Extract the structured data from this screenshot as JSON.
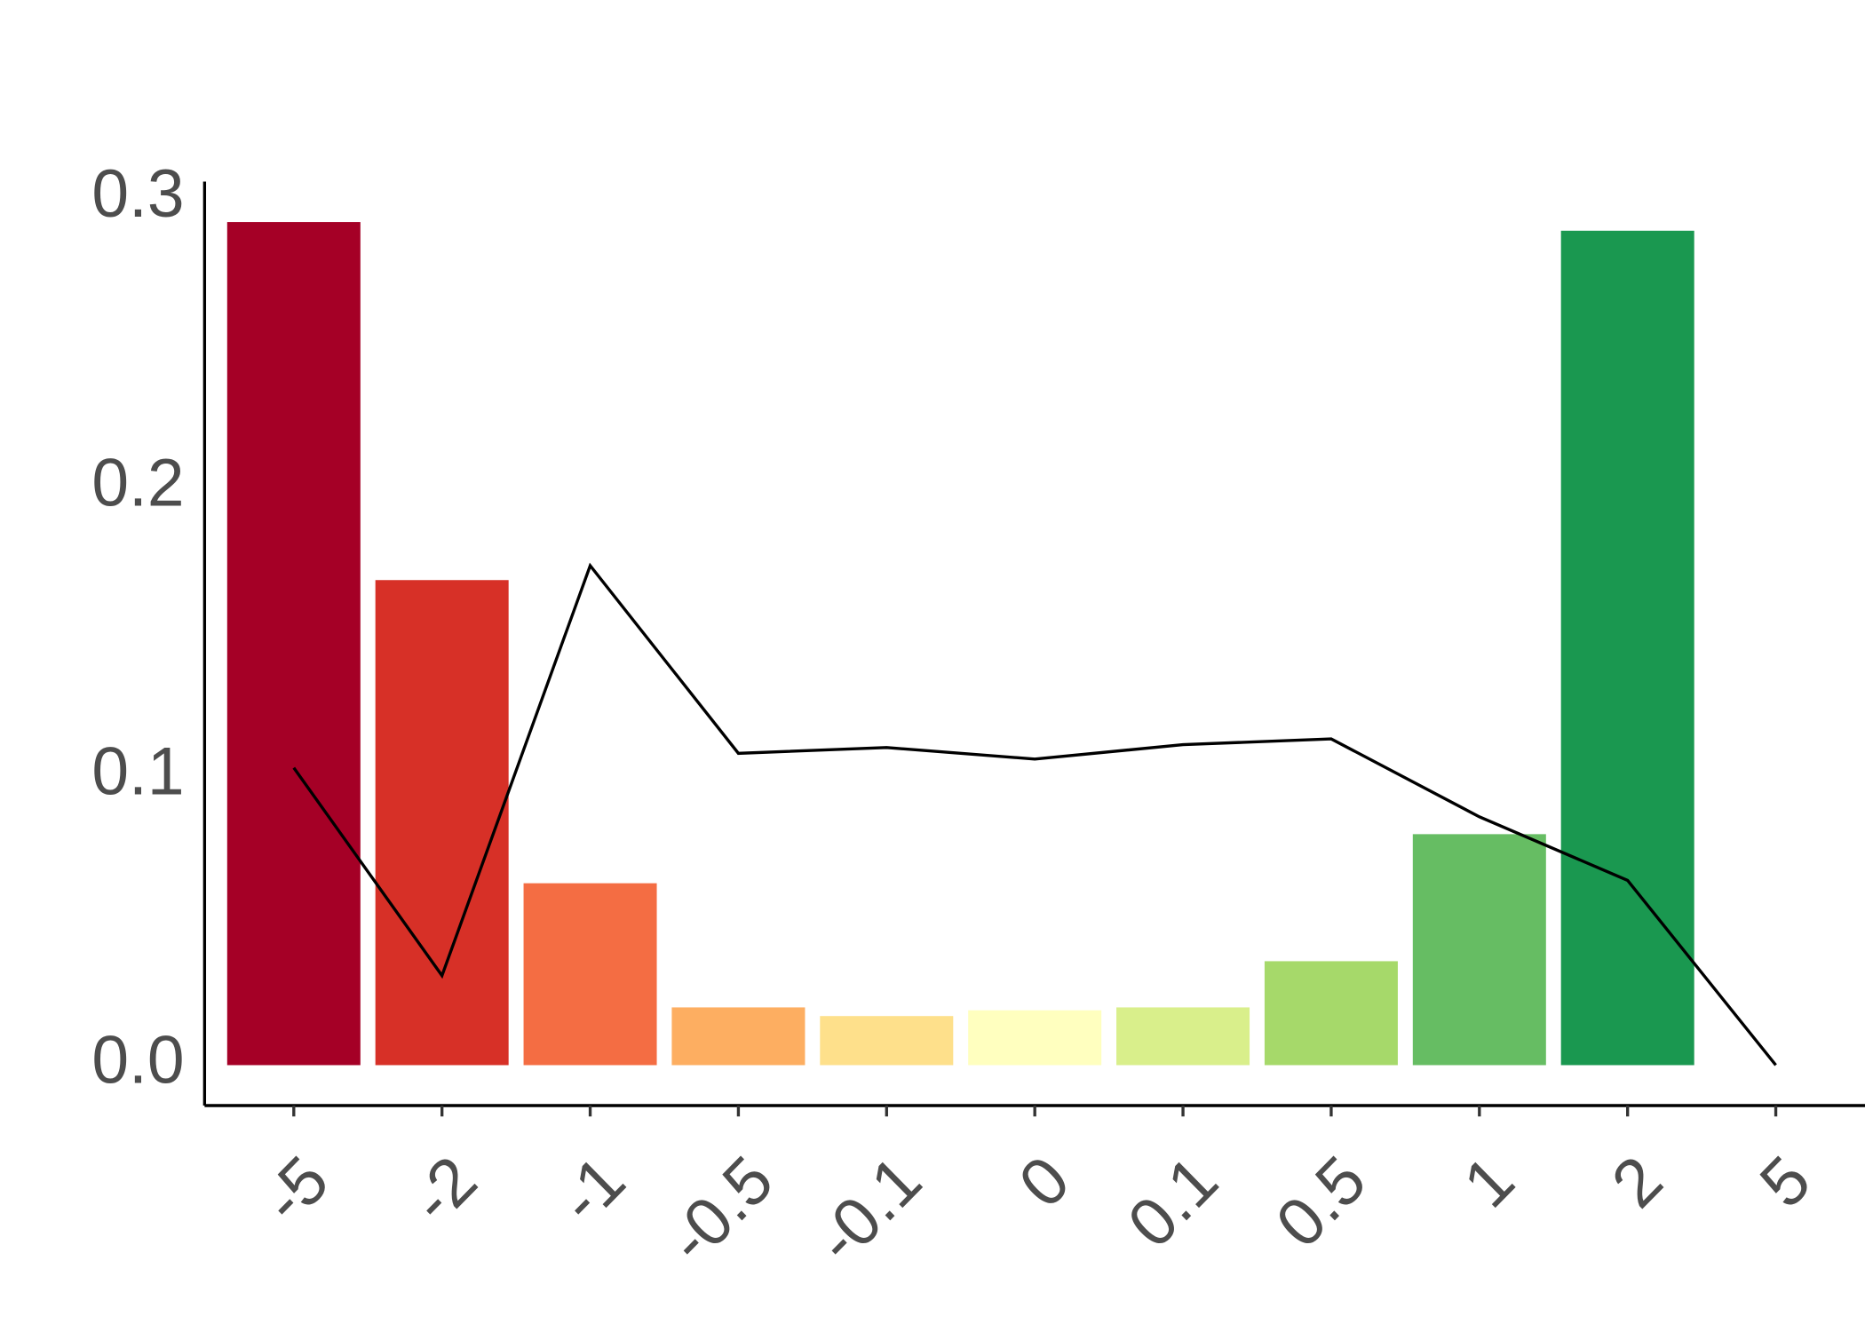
{
  "chart_data": {
    "type": "bar",
    "categories": [
      "-5",
      "-2",
      "-1",
      "-0.5",
      "-0.1",
      "0",
      "0.1",
      "0.5",
      "1",
      "2",
      "5"
    ],
    "series": [
      {
        "type": "bar",
        "colors": [
          "#a50026",
          "#d73027",
          "#f46d43",
          "#fdae61",
          "#fee08b",
          "#ffffbf",
          "#d9ef8b",
          "#a6d96a",
          "#66bd63",
          "#1a9850",
          null
        ],
        "values": [
          0.292,
          0.168,
          0.063,
          0.02,
          0.017,
          0.019,
          0.02,
          0.036,
          0.08,
          0.289,
          null
        ]
      },
      {
        "type": "line",
        "color": "#000000",
        "values": [
          0.103,
          0.031,
          0.173,
          0.108,
          0.11,
          0.106,
          0.111,
          0.113,
          0.086,
          0.064,
          0.0
        ]
      }
    ],
    "ylim": [
      -0.014,
      0.306
    ],
    "yticks": [
      {
        "value": 0,
        "label": "0.0"
      },
      0.1,
      0.2,
      0.3
    ]
  }
}
